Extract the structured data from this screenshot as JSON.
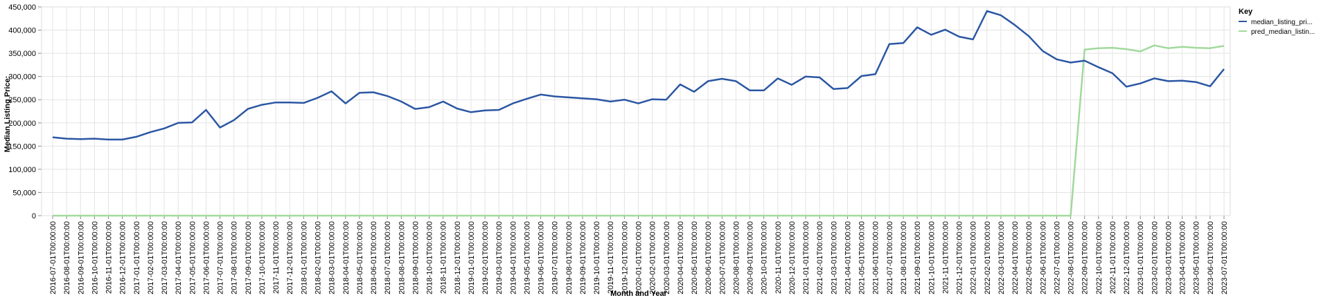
{
  "chart_data": {
    "type": "line",
    "xlabel": "Month and Year",
    "ylabel": "Median Listing Price:",
    "ylim": [
      0,
      450000
    ],
    "yticks": [
      "0",
      "50,000",
      "100,000",
      "150,000",
      "200,000",
      "250,000",
      "300,000",
      "350,000",
      "400,000",
      "450,000"
    ],
    "grid": true,
    "legend_position": "top-right",
    "legend_title": "Key",
    "x": [
      "2016-07-01T00:00:00",
      "2016-08-01T00:00:00",
      "2016-09-01T00:00:00",
      "2016-10-01T00:00:00",
      "2016-11-01T00:00:00",
      "2016-12-01T00:00:00",
      "2017-01-01T00:00:00",
      "2017-02-01T00:00:00",
      "2017-03-01T00:00:00",
      "2017-04-01T00:00:00",
      "2017-05-01T00:00:00",
      "2017-06-01T00:00:00",
      "2017-07-01T00:00:00",
      "2017-08-01T00:00:00",
      "2017-09-01T00:00:00",
      "2017-10-01T00:00:00",
      "2017-11-01T00:00:00",
      "2017-12-01T00:00:00",
      "2018-01-01T00:00:00",
      "2018-02-01T00:00:00",
      "2018-03-01T00:00:00",
      "2018-04-01T00:00:00",
      "2018-05-01T00:00:00",
      "2018-06-01T00:00:00",
      "2018-07-01T00:00:00",
      "2018-08-01T00:00:00",
      "2018-09-01T00:00:00",
      "2018-10-01T00:00:00",
      "2018-11-01T00:00:00",
      "2018-12-01T00:00:00",
      "2019-01-01T00:00:00",
      "2019-02-01T00:00:00",
      "2019-03-01T00:00:00",
      "2019-04-01T00:00:00",
      "2019-05-01T00:00:00",
      "2019-06-01T00:00:00",
      "2019-07-01T00:00:00",
      "2019-08-01T00:00:00",
      "2019-09-01T00:00:00",
      "2019-10-01T00:00:00",
      "2019-11-01T00:00:00",
      "2019-12-01T00:00:00",
      "2020-01-01T00:00:00",
      "2020-02-01T00:00:00",
      "2020-03-01T00:00:00",
      "2020-04-01T00:00:00",
      "2020-05-01T00:00:00",
      "2020-06-01T00:00:00",
      "2020-07-01T00:00:00",
      "2020-08-01T00:00:00",
      "2020-09-01T00:00:00",
      "2020-10-01T00:00:00",
      "2020-11-01T00:00:00",
      "2020-12-01T00:00:00",
      "2021-01-01T00:00:00",
      "2021-02-01T00:00:00",
      "2021-03-01T00:00:00",
      "2021-04-01T00:00:00",
      "2021-05-01T00:00:00",
      "2021-06-01T00:00:00",
      "2021-07-01T00:00:00",
      "2021-08-01T00:00:00",
      "2021-09-01T00:00:00",
      "2021-10-01T00:00:00",
      "2021-11-01T00:00:00",
      "2021-12-01T00:00:00",
      "2022-01-01T00:00:00",
      "2022-02-01T00:00:00",
      "2022-03-01T00:00:00",
      "2022-04-01T00:00:00",
      "2022-05-01T00:00:00",
      "2022-06-01T00:00:00",
      "2022-07-01T00:00:00",
      "2022-08-01T00:00:00",
      "2022-09-01T00:00:00",
      "2022-10-01T00:00:00",
      "2022-11-01T00:00:00",
      "2022-12-01T00:00:00",
      "2023-01-01T00:00:00",
      "2023-02-01T00:00:00",
      "2023-03-01T00:00:00",
      "2023-04-01T00:00:00",
      "2023-05-01T00:00:00",
      "2023-06-01T00:00:00",
      "2023-07-01T00:00:00"
    ],
    "series": [
      {
        "name": "median_listing_pri...",
        "color": "#2b56a3",
        "values": [
          169000,
          166000,
          165000,
          166000,
          164000,
          164000,
          170000,
          180000,
          188000,
          200000,
          201000,
          228000,
          190000,
          206000,
          230000,
          239000,
          244000,
          244000,
          243000,
          254000,
          268000,
          242000,
          265000,
          266000,
          258000,
          246000,
          230000,
          234000,
          246000,
          231000,
          223000,
          227000,
          228000,
          242000,
          252000,
          261000,
          257000,
          255000,
          253000,
          251000,
          246000,
          250000,
          242000,
          251000,
          250000,
          283000,
          267000,
          290000,
          295000,
          290000,
          270000,
          270000,
          296000,
          282000,
          300000,
          298000,
          273000,
          275000,
          301000,
          305000,
          370000,
          372000,
          406000,
          390000,
          401000,
          386000,
          380000,
          441000,
          432000,
          411000,
          387000,
          355000,
          337000,
          330000,
          334000,
          320000,
          307000,
          278000,
          285000,
          296000,
          290000,
          291000,
          288000,
          279000,
          316000
        ]
      },
      {
        "name": "pred_median_listin...",
        "color": "#a1d99b",
        "values": [
          0,
          0,
          0,
          0,
          0,
          0,
          0,
          0,
          0,
          0,
          0,
          0,
          0,
          0,
          0,
          0,
          0,
          0,
          0,
          0,
          0,
          0,
          0,
          0,
          0,
          0,
          0,
          0,
          0,
          0,
          0,
          0,
          0,
          0,
          0,
          0,
          0,
          0,
          0,
          0,
          0,
          0,
          0,
          0,
          0,
          0,
          0,
          0,
          0,
          0,
          0,
          0,
          0,
          0,
          0,
          0,
          0,
          0,
          0,
          0,
          0,
          0,
          0,
          0,
          0,
          0,
          0,
          0,
          0,
          0,
          0,
          0,
          0,
          0,
          358000,
          361000,
          362000,
          359000,
          354000,
          367000,
          361000,
          364000,
          362000,
          361000,
          366000
        ]
      }
    ]
  }
}
